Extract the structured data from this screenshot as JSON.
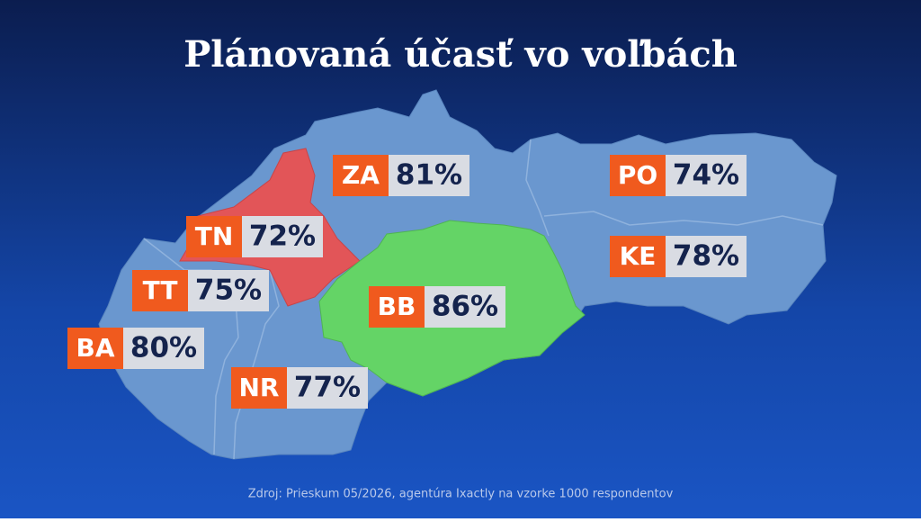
{
  "title": "Plánovaná účasť vo voľbách",
  "regions": [
    {
      "code": "ZA",
      "value": "81%",
      "color": "#6a97cf"
    },
    {
      "code": "PO",
      "value": "74%",
      "color": "#6a97cf"
    },
    {
      "code": "TN",
      "value": "72%",
      "color": "#e25558"
    },
    {
      "code": "KE",
      "value": "78%",
      "color": "#6a97cf"
    },
    {
      "code": "TT",
      "value": "75%",
      "color": "#6a97cf"
    },
    {
      "code": "BB",
      "value": "86%",
      "color": "#64d466"
    },
    {
      "code": "BA",
      "value": "80%",
      "color": "#6a97cf"
    },
    {
      "code": "NR",
      "value": "77%",
      "color": "#6a97cf"
    }
  ],
  "source": "Zdroj: Prieskum 05/2026, agentúra Ixactly na vzorke 1000 respondentov"
}
